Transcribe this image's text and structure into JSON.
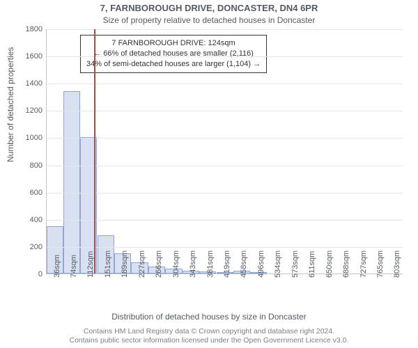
{
  "title": "7, FARNBOROUGH DRIVE, DONCASTER, DN4 6PR",
  "subtitle": "Size of property relative to detached houses in Doncaster",
  "ylabel": "Number of detached properties",
  "xlabel": "Distribution of detached houses by size in Doncaster",
  "credit_line1": "Contains HM Land Registry data © Crown copyright and database right 2024.",
  "credit_line2": "Contains public sector information licensed under the Open Government Licence v3.0.",
  "annotation": {
    "line1": "7 FARNBOROUGH DRIVE: 124sqm",
    "line2": "← 66% of detached houses are smaller (2,116)",
    "line3": "34% of semi-detached houses are larger (1,104) →"
  },
  "chart": {
    "type": "histogram",
    "background_color": "#ffffff",
    "grid_color": "#e4e7ea",
    "axis_color": "#bfc4ca",
    "text_color": "#555b61",
    "bar_fill": "#d8e0f1",
    "bar_border": "#8ea6d6",
    "vline_color": "#cc3e3e",
    "title_fontsize": 13,
    "label_fontsize": 12,
    "tick_fontsize": 11,
    "ylim": [
      0,
      1800
    ],
    "ytick_step": 200,
    "yticks": [
      0,
      200,
      400,
      600,
      800,
      1000,
      1200,
      1400,
      1600,
      1800
    ],
    "xmin": 17,
    "xmax": 822,
    "xticks": [
      36,
      74,
      112,
      151,
      189,
      227,
      266,
      304,
      343,
      381,
      419,
      458,
      496,
      534,
      573,
      611,
      650,
      688,
      727,
      765,
      803
    ],
    "xtick_labels": [
      "36sqm",
      "74sqm",
      "112sqm",
      "151sqm",
      "189sqm",
      "227sqm",
      "266sqm",
      "304sqm",
      "343sqm",
      "381sqm",
      "419sqm",
      "458sqm",
      "496sqm",
      "534sqm",
      "573sqm",
      "611sqm",
      "650sqm",
      "688sqm",
      "727sqm",
      "765sqm",
      "803sqm"
    ],
    "bar_width_sqm": 38,
    "bars": [
      {
        "left": 17,
        "value": 350
      },
      {
        "left": 55,
        "value": 1340
      },
      {
        "left": 93,
        "value": 1000
      },
      {
        "left": 131,
        "value": 280
      },
      {
        "left": 170,
        "value": 150
      },
      {
        "left": 208,
        "value": 80
      },
      {
        "left": 246,
        "value": 50
      },
      {
        "left": 285,
        "value": 35
      },
      {
        "left": 323,
        "value": 20
      },
      {
        "left": 361,
        "value": 15
      },
      {
        "left": 400,
        "value": 12
      },
      {
        "left": 438,
        "value": 20
      },
      {
        "left": 476,
        "value": 8
      }
    ],
    "vline_x": 124
  }
}
